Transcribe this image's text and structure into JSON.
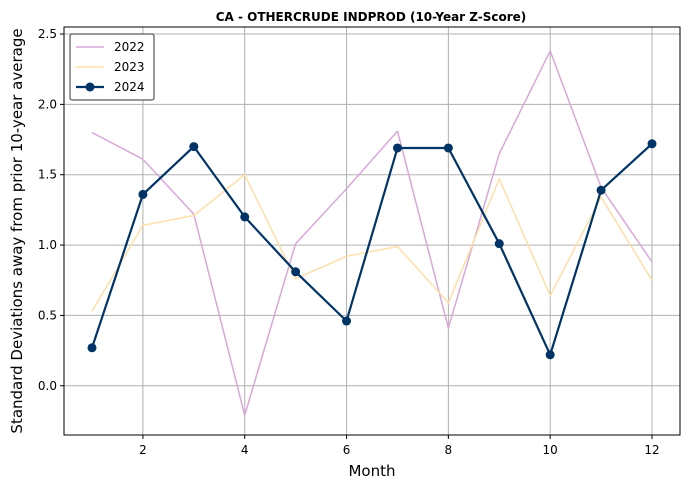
{
  "chart_data": {
    "type": "line",
    "title": "CA - OTHERCRUDE INDPROD (10-Year Z-Score)",
    "xlabel": "Month",
    "ylabel": "Standard Deviations away from prior 10-year average",
    "xlim": [
      0.45,
      12.55
    ],
    "ylim": [
      -0.35,
      2.55
    ],
    "xticks": [
      2,
      4,
      6,
      8,
      10,
      12
    ],
    "yticks": [
      0.0,
      0.5,
      1.0,
      1.5,
      2.0,
      2.5
    ],
    "grid": true,
    "legend_position": "top-left",
    "series": [
      {
        "name": "2022",
        "color": "#d8a8d8",
        "markers": false,
        "x": [
          1,
          2,
          3,
          4,
          5,
          6,
          7,
          8,
          9,
          10,
          11,
          12
        ],
        "values": [
          1.8,
          1.61,
          1.22,
          -0.21,
          1.01,
          1.4,
          1.81,
          0.41,
          1.65,
          2.38,
          1.41,
          0.88
        ]
      },
      {
        "name": "2023",
        "color": "#fde0a8",
        "markers": false,
        "x": [
          1,
          2,
          3,
          4,
          5,
          6,
          7,
          8,
          9,
          10,
          11,
          12
        ],
        "values": [
          0.53,
          1.14,
          1.21,
          1.5,
          0.76,
          0.92,
          0.99,
          0.59,
          1.47,
          0.64,
          1.34,
          0.75
        ]
      },
      {
        "name": "2024",
        "color": "#003366",
        "markers": true,
        "x": [
          1,
          2,
          3,
          4,
          5,
          6,
          7,
          8,
          9,
          10,
          11,
          12
        ],
        "values": [
          0.27,
          1.36,
          1.7,
          1.2,
          0.81,
          0.46,
          1.69,
          1.69,
          1.01,
          0.22,
          1.39,
          1.72
        ]
      }
    ]
  }
}
